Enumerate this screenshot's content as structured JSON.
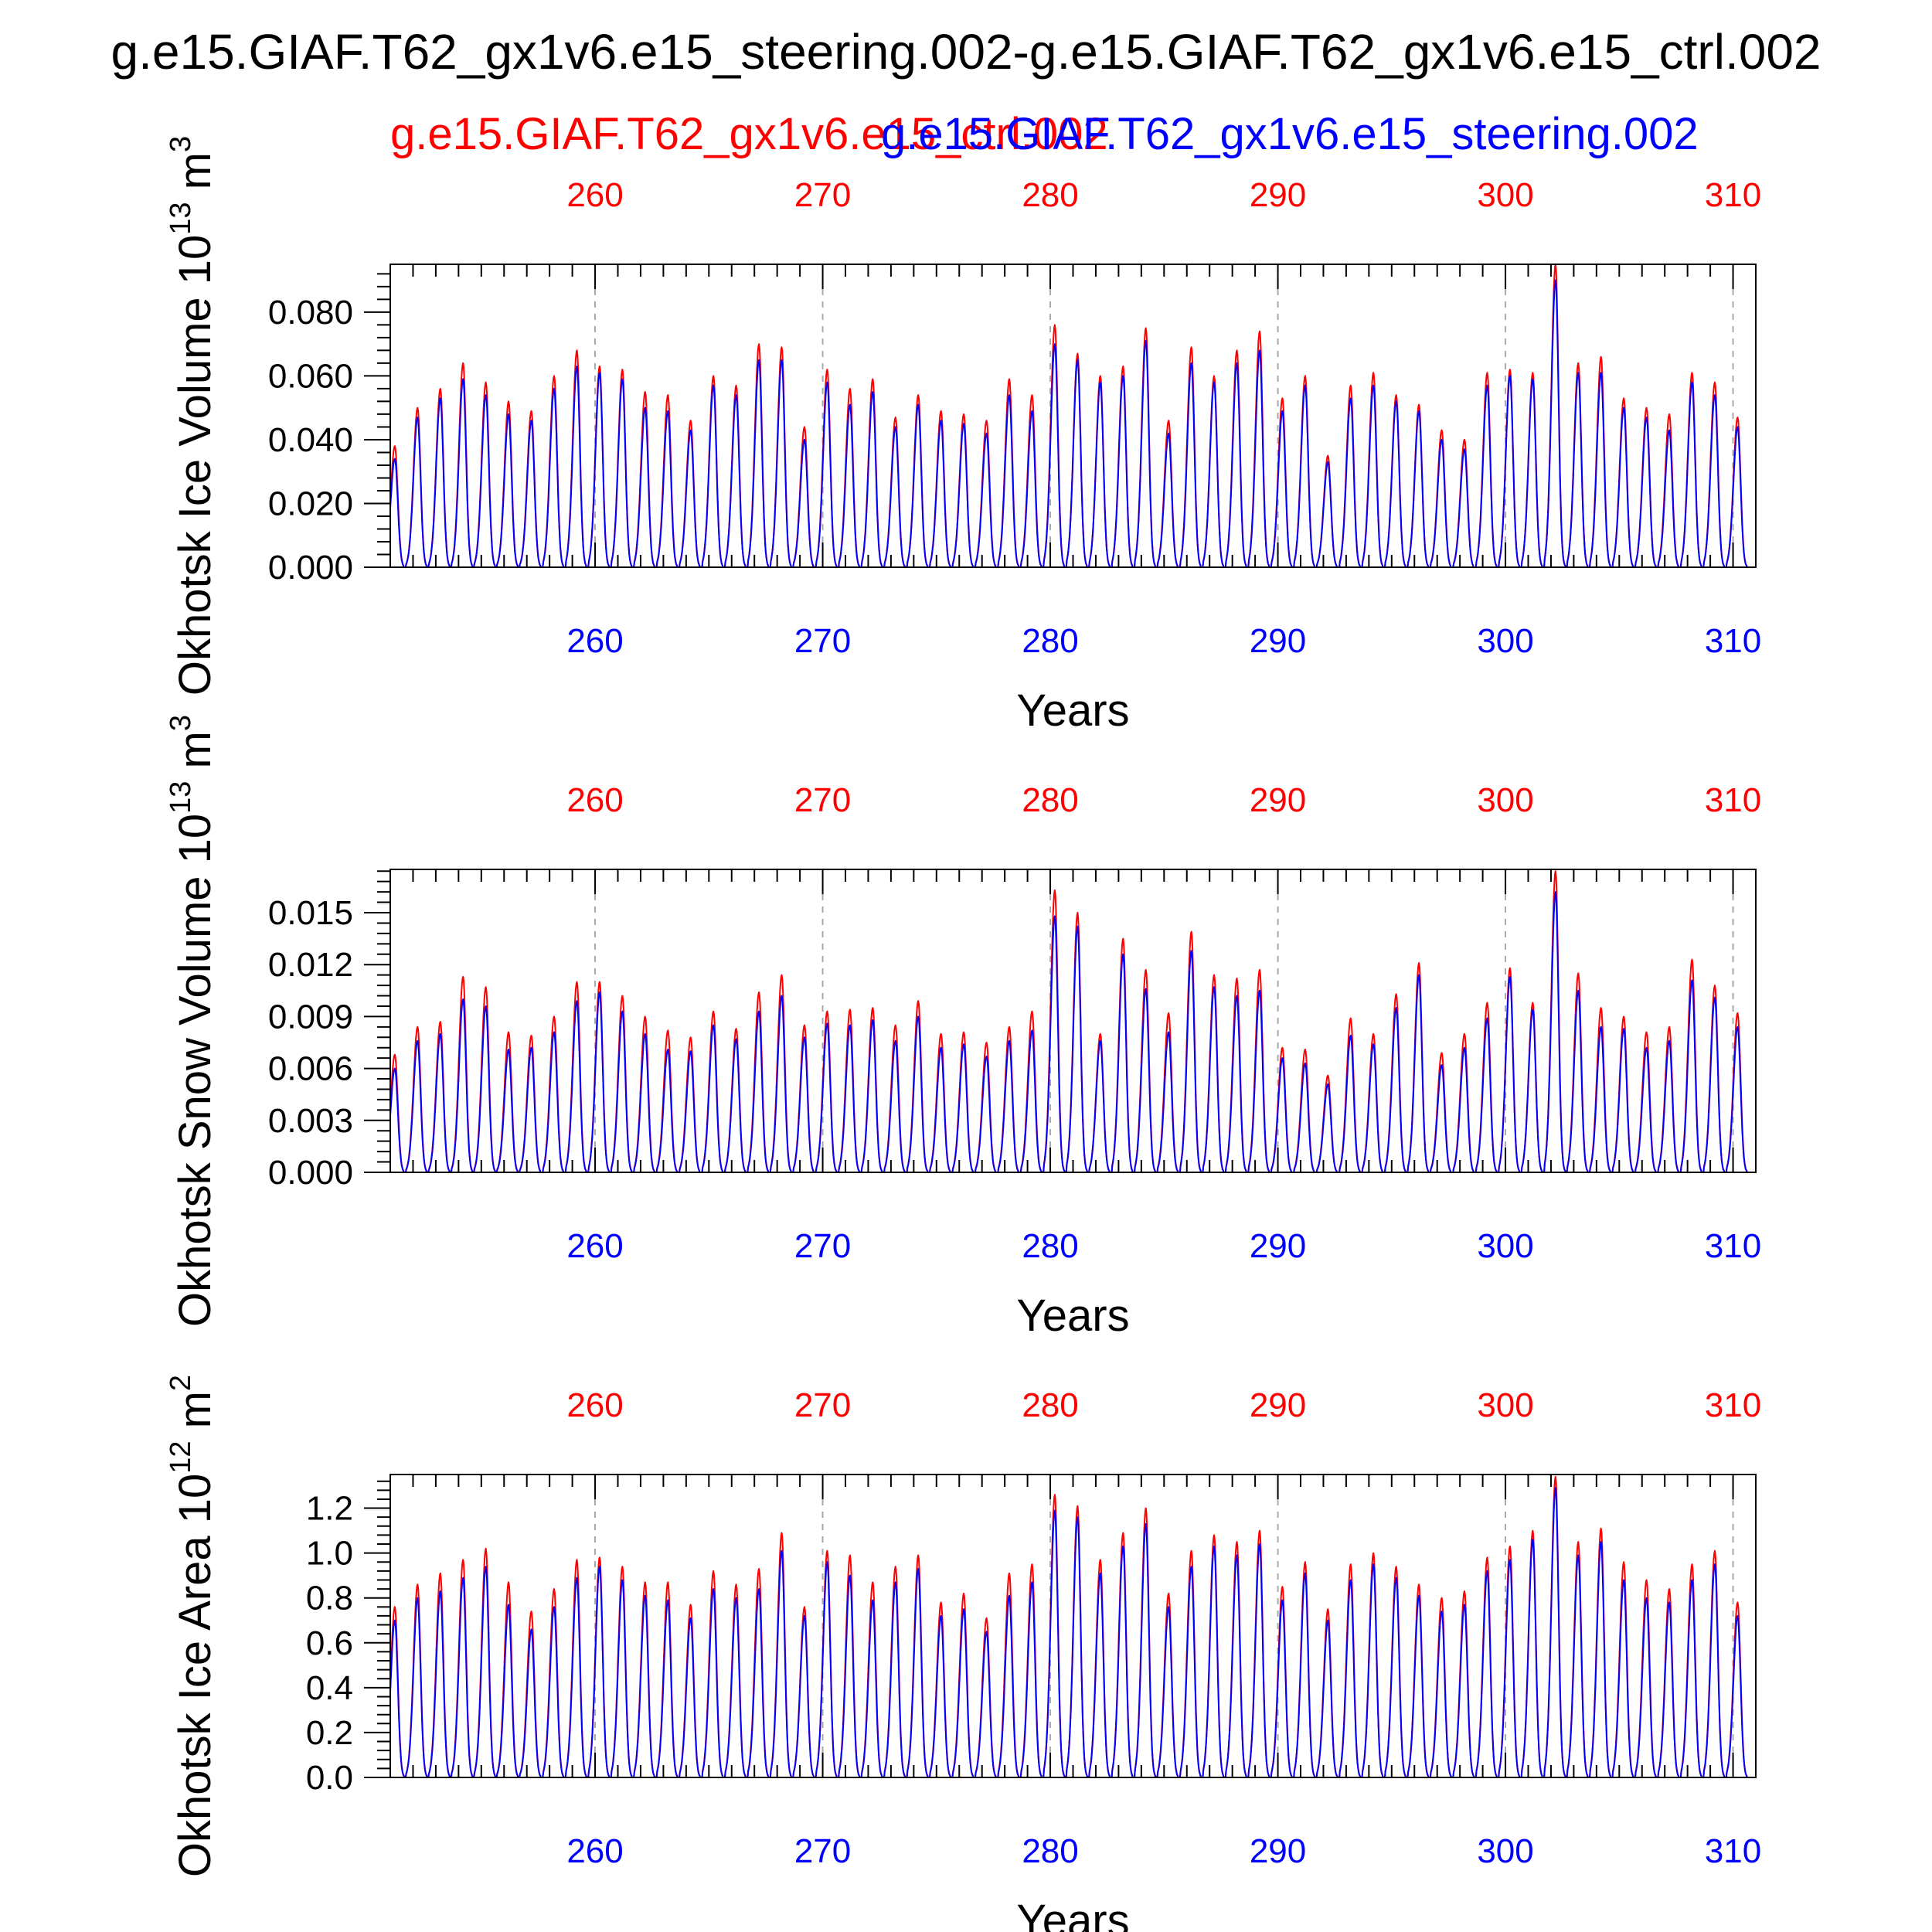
{
  "title": "g.e15.GIAF.T62_gx1v6.e15_steering.002-g.e15.GIAF.T62_gx1v6.e15_ctrl.002",
  "colors": {
    "ctrl": "#ff0000",
    "steering": "#0000ff",
    "axis": "#000000",
    "grid": "#aaaaaa"
  },
  "legend": {
    "ctrl_label": "g.e15.GIAF.T62_gx1v6.e15_ctrl.002",
    "steering_label": "g.e15.GIAF.T62_gx1v6.e15_steering.002"
  },
  "chart_data": [
    {
      "type": "line",
      "title": "",
      "ylabel_main": "Okhotsk Ice Volume 10",
      "ylabel_exp": "13",
      "ylabel_unit": " m",
      "ylabel_unit_exp": "3",
      "xlabel": "Years",
      "xlim": [
        251,
        311
      ],
      "ylim": [
        0,
        0.095
      ],
      "yticks": [
        0,
        0.02,
        0.04,
        0.06,
        0.08
      ],
      "ytick_labels": [
        "0.000",
        "0.020",
        "0.040",
        "0.060",
        "0.080"
      ],
      "xticks": [
        260,
        270,
        280,
        290,
        300,
        310
      ],
      "xtick_labels": [
        "260",
        "270",
        "280",
        "290",
        "300",
        "310"
      ],
      "series": [
        {
          "name": "g.e15.GIAF.T62_gx1v6.e15_ctrl.002",
          "color": "#ff0000",
          "x": [
            251.2,
            252.2,
            253.2,
            254.2,
            255.2,
            256.2,
            257.2,
            258.2,
            259.2,
            260.2,
            261.2,
            262.2,
            263.2,
            264.2,
            265.2,
            266.2,
            267.2,
            268.2,
            269.2,
            270.2,
            271.2,
            272.2,
            273.2,
            274.2,
            275.2,
            276.2,
            277.2,
            278.2,
            279.2,
            280.2,
            281.2,
            282.2,
            283.2,
            284.2,
            285.2,
            286.2,
            287.2,
            288.2,
            289.2,
            290.2,
            291.2,
            292.2,
            293.2,
            294.2,
            295.2,
            296.2,
            297.2,
            298.2,
            299.2,
            300.2,
            301.2,
            302.2,
            303.2,
            304.2,
            305.2,
            306.2,
            307.2,
            308.2,
            309.2,
            310.2
          ],
          "peaks": [
            0.038,
            0.05,
            0.056,
            0.064,
            0.058,
            0.052,
            0.049,
            0.06,
            0.068,
            0.063,
            0.062,
            0.055,
            0.054,
            0.046,
            0.06,
            0.057,
            0.07,
            0.069,
            0.044,
            0.062,
            0.056,
            0.059,
            0.047,
            0.054,
            0.049,
            0.048,
            0.046,
            0.059,
            0.054,
            0.076,
            0.067,
            0.06,
            0.063,
            0.075,
            0.046,
            0.069,
            0.06,
            0.068,
            0.074,
            0.053,
            0.06,
            0.035,
            0.057,
            0.061,
            0.054,
            0.051,
            0.043,
            0.04,
            0.061,
            0.062,
            0.061,
            0.095,
            0.064,
            0.066,
            0.053,
            0.05,
            0.048,
            0.061,
            0.058,
            0.047
          ]
        },
        {
          "name": "g.e15.GIAF.T62_gx1v6.e15_steering.002",
          "color": "#0000ff",
          "x": [
            251.2,
            252.2,
            253.2,
            254.2,
            255.2,
            256.2,
            257.2,
            258.2,
            259.2,
            260.2,
            261.2,
            262.2,
            263.2,
            264.2,
            265.2,
            266.2,
            267.2,
            268.2,
            269.2,
            270.2,
            271.2,
            272.2,
            273.2,
            274.2,
            275.2,
            276.2,
            277.2,
            278.2,
            279.2,
            280.2,
            281.2,
            282.2,
            283.2,
            284.2,
            285.2,
            286.2,
            287.2,
            288.2,
            289.2,
            290.2,
            291.2,
            292.2,
            293.2,
            294.2,
            295.2,
            296.2,
            297.2,
            298.2,
            299.2,
            300.2,
            301.2,
            302.2,
            303.2,
            304.2,
            305.2,
            306.2,
            307.2,
            308.2,
            309.2,
            310.2
          ],
          "peaks": [
            0.034,
            0.047,
            0.053,
            0.059,
            0.054,
            0.048,
            0.046,
            0.056,
            0.063,
            0.061,
            0.059,
            0.05,
            0.049,
            0.043,
            0.057,
            0.054,
            0.065,
            0.065,
            0.04,
            0.058,
            0.051,
            0.055,
            0.044,
            0.051,
            0.046,
            0.045,
            0.042,
            0.054,
            0.049,
            0.07,
            0.065,
            0.058,
            0.06,
            0.071,
            0.042,
            0.064,
            0.058,
            0.064,
            0.068,
            0.049,
            0.057,
            0.033,
            0.053,
            0.057,
            0.052,
            0.049,
            0.04,
            0.037,
            0.057,
            0.06,
            0.059,
            0.09,
            0.061,
            0.061,
            0.05,
            0.047,
            0.043,
            0.058,
            0.054,
            0.044
          ]
        }
      ]
    },
    {
      "type": "line",
      "title": "",
      "ylabel_main": "Okhotsk Snow Volume 10",
      "ylabel_exp": "13",
      "ylabel_unit": " m",
      "ylabel_unit_exp": "3",
      "xlabel": "Years",
      "xlim": [
        251,
        311
      ],
      "ylim": [
        0,
        0.0175
      ],
      "yticks": [
        0,
        0.003,
        0.006,
        0.009,
        0.012,
        0.015
      ],
      "ytick_labels": [
        "0.000",
        "0.003",
        "0.006",
        "0.009",
        "0.012",
        "0.015"
      ],
      "xticks": [
        260,
        270,
        280,
        290,
        300,
        310
      ],
      "xtick_labels": [
        "260",
        "270",
        "280",
        "290",
        "300",
        "310"
      ],
      "series": [
        {
          "name": "g.e15.GIAF.T62_gx1v6.e15_ctrl.002",
          "color": "#ff0000",
          "x": [
            251.2,
            252.2,
            253.2,
            254.2,
            255.2,
            256.2,
            257.2,
            258.2,
            259.2,
            260.2,
            261.2,
            262.2,
            263.2,
            264.2,
            265.2,
            266.2,
            267.2,
            268.2,
            269.2,
            270.2,
            271.2,
            272.2,
            273.2,
            274.2,
            275.2,
            276.2,
            277.2,
            278.2,
            279.2,
            280.2,
            281.2,
            282.2,
            283.2,
            284.2,
            285.2,
            286.2,
            287.2,
            288.2,
            289.2,
            290.2,
            291.2,
            292.2,
            293.2,
            294.2,
            295.2,
            296.2,
            297.2,
            298.2,
            299.2,
            300.2,
            301.2,
            302.2,
            303.2,
            304.2,
            305.2,
            306.2,
            307.2,
            308.2,
            309.2,
            310.2
          ],
          "peaks": [
            0.0068,
            0.0084,
            0.0087,
            0.0113,
            0.0107,
            0.0081,
            0.0079,
            0.009,
            0.011,
            0.011,
            0.0102,
            0.009,
            0.0082,
            0.0078,
            0.0093,
            0.0083,
            0.0104,
            0.0114,
            0.0085,
            0.0093,
            0.0094,
            0.0095,
            0.0085,
            0.0099,
            0.008,
            0.0081,
            0.0075,
            0.0084,
            0.0093,
            0.0163,
            0.015,
            0.008,
            0.0135,
            0.0117,
            0.0092,
            0.0139,
            0.0114,
            0.0112,
            0.0117,
            0.0072,
            0.0071,
            0.0056,
            0.0089,
            0.008,
            0.0103,
            0.0121,
            0.0069,
            0.008,
            0.0098,
            0.0118,
            0.0098,
            0.0174,
            0.0115,
            0.0095,
            0.009,
            0.0081,
            0.0084,
            0.0123,
            0.0108,
            0.0092
          ]
        },
        {
          "name": "g.e15.GIAF.T62_gx1v6.e15_steering.002",
          "color": "#0000ff",
          "x": [
            251.2,
            252.2,
            253.2,
            254.2,
            255.2,
            256.2,
            257.2,
            258.2,
            259.2,
            260.2,
            261.2,
            262.2,
            263.2,
            264.2,
            265.2,
            266.2,
            267.2,
            268.2,
            269.2,
            270.2,
            271.2,
            272.2,
            273.2,
            274.2,
            275.2,
            276.2,
            277.2,
            278.2,
            279.2,
            280.2,
            281.2,
            282.2,
            283.2,
            284.2,
            285.2,
            286.2,
            287.2,
            288.2,
            289.2,
            290.2,
            291.2,
            292.2,
            293.2,
            294.2,
            295.2,
            296.2,
            297.2,
            298.2,
            299.2,
            300.2,
            301.2,
            302.2,
            303.2,
            304.2,
            305.2,
            306.2,
            307.2,
            308.2,
            309.2,
            310.2
          ],
          "peaks": [
            0.006,
            0.0076,
            0.008,
            0.01,
            0.0096,
            0.0071,
            0.0072,
            0.0081,
            0.0099,
            0.0104,
            0.0093,
            0.008,
            0.0071,
            0.007,
            0.0085,
            0.0077,
            0.0093,
            0.0102,
            0.0078,
            0.0086,
            0.0085,
            0.0088,
            0.0076,
            0.009,
            0.0072,
            0.0074,
            0.0067,
            0.0076,
            0.0082,
            0.0148,
            0.0142,
            0.0076,
            0.0126,
            0.0106,
            0.0081,
            0.0128,
            0.0107,
            0.0102,
            0.0105,
            0.0066,
            0.0063,
            0.0051,
            0.0079,
            0.0074,
            0.0095,
            0.0114,
            0.0062,
            0.0072,
            0.0089,
            0.0113,
            0.0094,
            0.0162,
            0.0105,
            0.0084,
            0.0083,
            0.0072,
            0.0076,
            0.0111,
            0.0101,
            0.0084
          ]
        }
      ]
    },
    {
      "type": "line",
      "title": "",
      "ylabel_main": "Okhotsk Ice Area 10",
      "ylabel_exp": "12",
      "ylabel_unit": " m",
      "ylabel_unit_exp": "2",
      "xlabel": "Years",
      "xlim": [
        251,
        311
      ],
      "ylim": [
        0,
        1.35
      ],
      "yticks": [
        0,
        0.2,
        0.4,
        0.6,
        0.8,
        1.0,
        1.2
      ],
      "ytick_labels": [
        "0.0",
        "0.2",
        "0.4",
        "0.6",
        "0.8",
        "1.0",
        "1.2"
      ],
      "xticks": [
        260,
        270,
        280,
        290,
        300,
        310
      ],
      "xtick_labels": [
        "260",
        "270",
        "280",
        "290",
        "300",
        "310"
      ],
      "series": [
        {
          "name": "g.e15.GIAF.T62_gx1v6.e15_ctrl.002",
          "color": "#ff0000",
          "x": [
            251.2,
            252.2,
            253.2,
            254.2,
            255.2,
            256.2,
            257.2,
            258.2,
            259.2,
            260.2,
            261.2,
            262.2,
            263.2,
            264.2,
            265.2,
            266.2,
            267.2,
            268.2,
            269.2,
            270.2,
            271.2,
            272.2,
            273.2,
            274.2,
            275.2,
            276.2,
            277.2,
            278.2,
            279.2,
            280.2,
            281.2,
            282.2,
            283.2,
            284.2,
            285.2,
            286.2,
            287.2,
            288.2,
            289.2,
            290.2,
            291.2,
            292.2,
            293.2,
            294.2,
            295.2,
            296.2,
            297.2,
            298.2,
            299.2,
            300.2,
            301.2,
            302.2,
            303.2,
            304.2,
            305.2,
            306.2,
            307.2,
            308.2,
            309.2,
            310.2
          ],
          "peaks": [
            0.76,
            0.86,
            0.91,
            0.97,
            1.02,
            0.87,
            0.74,
            0.84,
            0.97,
            0.98,
            0.94,
            0.87,
            0.87,
            0.77,
            0.92,
            0.86,
            0.93,
            1.09,
            0.76,
            1.01,
            0.99,
            0.87,
            0.94,
            0.99,
            0.78,
            0.82,
            0.71,
            0.91,
            0.95,
            1.26,
            1.21,
            0.97,
            1.09,
            1.2,
            0.82,
            1.01,
            1.08,
            1.05,
            1.1,
            0.85,
            0.96,
            0.75,
            0.95,
            1.0,
            0.94,
            0.86,
            0.8,
            0.83,
            0.98,
            1.03,
            1.1,
            1.34,
            1.05,
            1.11,
            0.96,
            0.88,
            0.84,
            0.95,
            1.01,
            0.78
          ]
        },
        {
          "name": "g.e15.GIAF.T62_gx1v6.e15_steering.002",
          "color": "#0000ff",
          "x": [
            251.2,
            252.2,
            253.2,
            254.2,
            255.2,
            256.2,
            257.2,
            258.2,
            259.2,
            260.2,
            261.2,
            262.2,
            263.2,
            264.2,
            265.2,
            266.2,
            267.2,
            268.2,
            269.2,
            270.2,
            271.2,
            272.2,
            273.2,
            274.2,
            275.2,
            276.2,
            277.2,
            278.2,
            279.2,
            280.2,
            281.2,
            282.2,
            283.2,
            284.2,
            285.2,
            286.2,
            287.2,
            288.2,
            289.2,
            290.2,
            291.2,
            292.2,
            293.2,
            294.2,
            295.2,
            296.2,
            297.2,
            298.2,
            299.2,
            300.2,
            301.2,
            302.2,
            303.2,
            304.2,
            305.2,
            306.2,
            307.2,
            308.2,
            309.2,
            310.2
          ],
          "peaks": [
            0.7,
            0.8,
            0.83,
            0.89,
            0.94,
            0.77,
            0.66,
            0.76,
            0.89,
            0.94,
            0.88,
            0.81,
            0.79,
            0.71,
            0.84,
            0.8,
            0.84,
            1.01,
            0.72,
            0.96,
            0.9,
            0.79,
            0.87,
            0.93,
            0.72,
            0.75,
            0.65,
            0.81,
            0.87,
            1.19,
            1.16,
            0.91,
            1.03,
            1.13,
            0.76,
            0.94,
            1.03,
            0.99,
            1.04,
            0.79,
            0.91,
            0.7,
            0.88,
            0.95,
            0.89,
            0.81,
            0.74,
            0.77,
            0.92,
            0.97,
            1.06,
            1.29,
            0.99,
            1.05,
            0.88,
            0.8,
            0.78,
            0.88,
            0.95,
            0.72
          ]
        }
      ]
    }
  ]
}
